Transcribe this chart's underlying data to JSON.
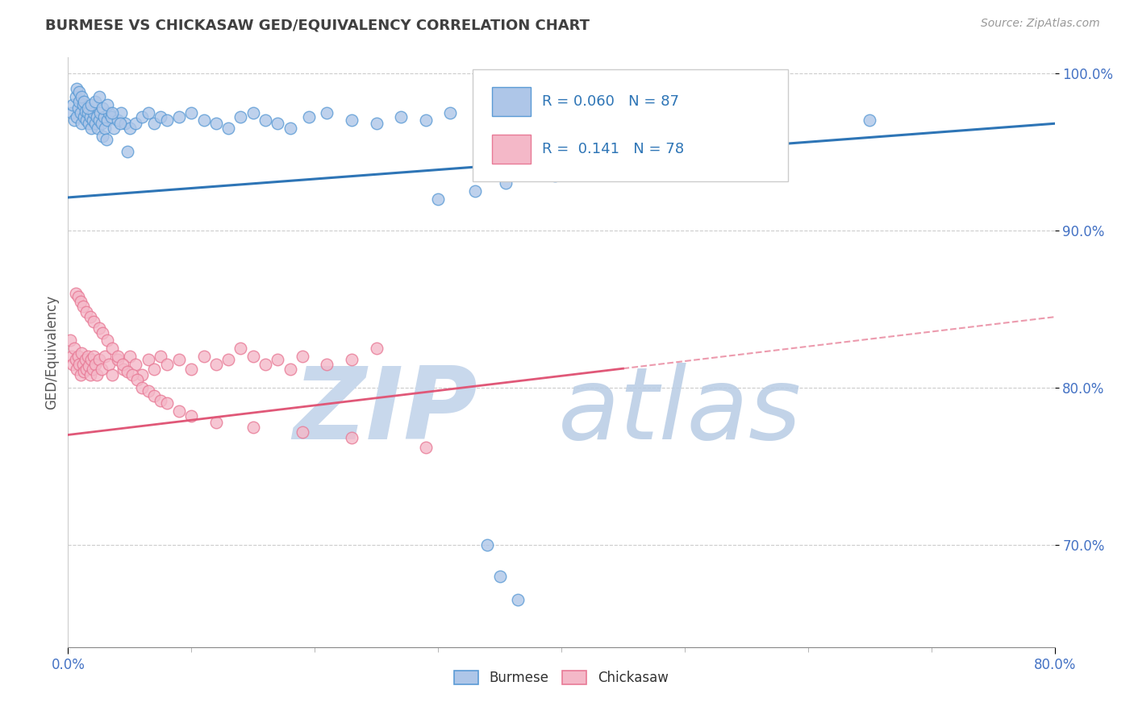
{
  "title": "BURMESE VS CHICKASAW GED/EQUIVALENCY CORRELATION CHART",
  "source_text": "Source: ZipAtlas.com",
  "ylabel": "GED/Equivalency",
  "xlim": [
    0.0,
    0.8
  ],
  "ylim": [
    0.635,
    1.01
  ],
  "burmese_R": 0.06,
  "burmese_N": 87,
  "chickasaw_R": 0.141,
  "chickasaw_N": 78,
  "burmese_color": "#aec6e8",
  "burmese_edge_color": "#5b9bd5",
  "burmese_line_color": "#2e75b6",
  "chickasaw_color": "#f4b8c8",
  "chickasaw_edge_color": "#e87a96",
  "chickasaw_line_color": "#e05878",
  "legend_label_burmese": "Burmese",
  "legend_label_chickasaw": "Chickasaw",
  "title_color": "#404040",
  "watermark_zip_color": "#c8d8ec",
  "watermark_atlas_color": "#b8cce4",
  "ytick_color": "#4472c4",
  "xtick_color": "#4472c4",
  "burmese_x": [
    0.003,
    0.004,
    0.005,
    0.006,
    0.007,
    0.008,
    0.009,
    0.01,
    0.011,
    0.012,
    0.013,
    0.014,
    0.015,
    0.016,
    0.017,
    0.018,
    0.019,
    0.02,
    0.021,
    0.022,
    0.023,
    0.024,
    0.025,
    0.026,
    0.027,
    0.028,
    0.029,
    0.03,
    0.031,
    0.032,
    0.033,
    0.035,
    0.037,
    0.04,
    0.043,
    0.046,
    0.05,
    0.055,
    0.06,
    0.065,
    0.07,
    0.075,
    0.08,
    0.09,
    0.1,
    0.11,
    0.12,
    0.13,
    0.14,
    0.15,
    0.16,
    0.17,
    0.18,
    0.195,
    0.21,
    0.23,
    0.25,
    0.27,
    0.29,
    0.31,
    0.007,
    0.009,
    0.011,
    0.013,
    0.016,
    0.019,
    0.022,
    0.025,
    0.028,
    0.032,
    0.036,
    0.042,
    0.048,
    0.38,
    0.42,
    0.5,
    0.57,
    0.3,
    0.33,
    0.355,
    0.395,
    0.44,
    0.48,
    0.34,
    0.35,
    0.365,
    0.65
  ],
  "burmese_y": [
    0.975,
    0.98,
    0.97,
    0.985,
    0.972,
    0.978,
    0.982,
    0.975,
    0.968,
    0.98,
    0.972,
    0.976,
    0.97,
    0.975,
    0.968,
    0.972,
    0.965,
    0.97,
    0.975,
    0.968,
    0.972,
    0.965,
    0.97,
    0.975,
    0.968,
    0.96,
    0.972,
    0.965,
    0.958,
    0.97,
    0.975,
    0.972,
    0.965,
    0.97,
    0.975,
    0.968,
    0.965,
    0.968,
    0.972,
    0.975,
    0.968,
    0.972,
    0.97,
    0.972,
    0.975,
    0.97,
    0.968,
    0.965,
    0.972,
    0.975,
    0.97,
    0.968,
    0.965,
    0.972,
    0.975,
    0.97,
    0.968,
    0.972,
    0.97,
    0.975,
    0.99,
    0.988,
    0.985,
    0.982,
    0.978,
    0.98,
    0.982,
    0.985,
    0.978,
    0.98,
    0.975,
    0.968,
    0.95,
    0.965,
    0.972,
    0.975,
    0.97,
    0.92,
    0.925,
    0.93,
    0.935,
    0.96,
    0.955,
    0.7,
    0.68,
    0.665,
    0.97
  ],
  "chickasaw_x": [
    0.002,
    0.003,
    0.004,
    0.005,
    0.006,
    0.007,
    0.008,
    0.009,
    0.01,
    0.011,
    0.012,
    0.013,
    0.014,
    0.015,
    0.016,
    0.017,
    0.018,
    0.019,
    0.02,
    0.021,
    0.022,
    0.023,
    0.025,
    0.027,
    0.03,
    0.033,
    0.036,
    0.04,
    0.045,
    0.05,
    0.055,
    0.06,
    0.065,
    0.07,
    0.075,
    0.08,
    0.09,
    0.1,
    0.11,
    0.12,
    0.13,
    0.14,
    0.15,
    0.16,
    0.17,
    0.18,
    0.19,
    0.21,
    0.23,
    0.25,
    0.006,
    0.008,
    0.01,
    0.012,
    0.015,
    0.018,
    0.021,
    0.025,
    0.028,
    0.032,
    0.036,
    0.04,
    0.044,
    0.048,
    0.052,
    0.056,
    0.06,
    0.065,
    0.07,
    0.075,
    0.08,
    0.09,
    0.1,
    0.12,
    0.15,
    0.19,
    0.23,
    0.29
  ],
  "chickasaw_y": [
    0.83,
    0.82,
    0.815,
    0.825,
    0.818,
    0.812,
    0.82,
    0.815,
    0.808,
    0.822,
    0.815,
    0.81,
    0.818,
    0.812,
    0.82,
    0.814,
    0.808,
    0.818,
    0.812,
    0.82,
    0.815,
    0.808,
    0.818,
    0.812,
    0.82,
    0.815,
    0.808,
    0.818,
    0.812,
    0.82,
    0.815,
    0.808,
    0.818,
    0.812,
    0.82,
    0.815,
    0.818,
    0.812,
    0.82,
    0.815,
    0.818,
    0.825,
    0.82,
    0.815,
    0.818,
    0.812,
    0.82,
    0.815,
    0.818,
    0.825,
    0.86,
    0.858,
    0.855,
    0.852,
    0.848,
    0.845,
    0.842,
    0.838,
    0.835,
    0.83,
    0.825,
    0.82,
    0.815,
    0.81,
    0.808,
    0.805,
    0.8,
    0.798,
    0.795,
    0.792,
    0.79,
    0.785,
    0.782,
    0.778,
    0.775,
    0.772,
    0.768,
    0.762
  ]
}
